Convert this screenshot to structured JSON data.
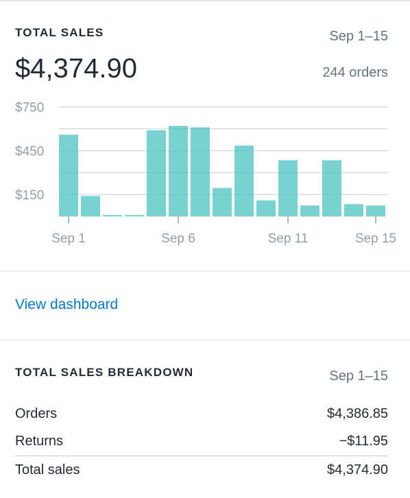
{
  "total_sales": {
    "title": "TOTAL SALES",
    "date_range": "Sep 1–15",
    "amount": "$4,374.90",
    "orders": "244 orders"
  },
  "chart_data": {
    "type": "bar",
    "categories": [
      "Sep 1",
      "Sep 2",
      "Sep 3",
      "Sep 4",
      "Sep 5",
      "Sep 6",
      "Sep 7",
      "Sep 8",
      "Sep 9",
      "Sep 10",
      "Sep 11",
      "Sep 12",
      "Sep 13",
      "Sep 14",
      "Sep 15"
    ],
    "x_tick_labels": [
      "Sep 1",
      "Sep 6",
      "Sep 11",
      "Sep 15"
    ],
    "y_tick_labels": [
      "$750",
      "$450",
      "$150"
    ],
    "y_ticks": [
      750,
      450,
      150
    ],
    "ylim": [
      0,
      750
    ],
    "values": [
      560,
      140,
      10,
      10,
      590,
      620,
      610,
      195,
      485,
      110,
      385,
      75,
      385,
      85,
      75
    ],
    "bar_color": "#47c1bf",
    "grid": true
  },
  "link": {
    "label": "View dashboard",
    "color": "#007ace"
  },
  "breakdown": {
    "title": "TOTAL SALES BREAKDOWN",
    "date_range": "Sep 1–15",
    "rows": [
      {
        "label": "Orders",
        "value": "$4,386.85"
      },
      {
        "label": "Returns",
        "value": "−$11.95"
      },
      {
        "label": "Total sales",
        "value": "$4,374.90"
      }
    ]
  }
}
